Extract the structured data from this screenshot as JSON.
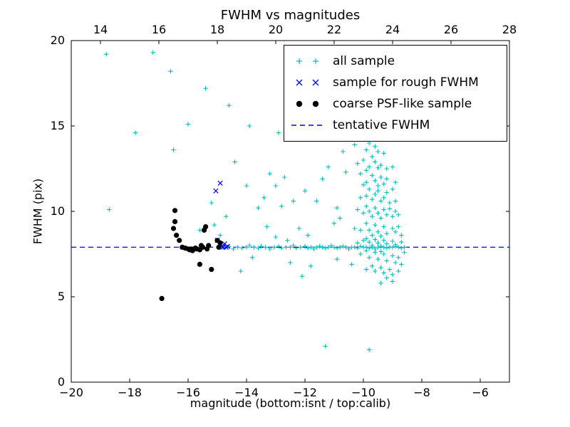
{
  "chart_data": {
    "type": "scatter",
    "title": "FWHM vs magnitudes",
    "xlabel": "magnitude (bottom:isnt / top:calib)",
    "ylabel": "FWHM (pix)",
    "xlim": [
      -20,
      -5
    ],
    "ylim": [
      0,
      20
    ],
    "top_xlim": [
      13,
      28
    ],
    "x_ticks": [
      -20,
      -18,
      -16,
      -14,
      -12,
      -10,
      -8,
      -6
    ],
    "top_x_ticks": [
      14,
      16,
      18,
      20,
      22,
      24,
      26,
      28
    ],
    "y_ticks": [
      0,
      5,
      10,
      15,
      20
    ],
    "grid": false,
    "legend_position": "upper right",
    "tentative_fwhm": 7.9,
    "colors": {
      "all_sample": "#00bfbf",
      "rough_fwhm_sample": "#0000ff",
      "psf_like_sample": "#000000",
      "tentative_fwhm_line": "#0000ff"
    },
    "series": [
      {
        "name": "all sample",
        "marker": "plus",
        "color": "#00bfbf",
        "points": [
          [
            -18.8,
            19.2
          ],
          [
            -17.2,
            19.3
          ],
          [
            -16.6,
            18.2
          ],
          [
            -15.4,
            17.2
          ],
          [
            -14.6,
            16.2
          ],
          [
            -12.3,
            16.6
          ],
          [
            -16.0,
            15.1
          ],
          [
            -13.9,
            15.0
          ],
          [
            -17.8,
            14.6
          ],
          [
            -12.9,
            14.6
          ],
          [
            -11.1,
            14.9
          ],
          [
            -11.6,
            14.3
          ],
          [
            -18.7,
            10.1
          ],
          [
            -16.5,
            13.6
          ],
          [
            -15.2,
            10.5
          ],
          [
            -14.7,
            9.7
          ],
          [
            -14.4,
            12.9
          ],
          [
            -14.0,
            11.5
          ],
          [
            -13.4,
            10.8
          ],
          [
            -15.1,
            9.2
          ],
          [
            -15.6,
            8.9
          ],
          [
            -14.9,
            8.6
          ],
          [
            -13.2,
            12.2
          ],
          [
            -12.7,
            12.0
          ],
          [
            -13.0,
            11.5
          ],
          [
            -11.2,
            12.6
          ],
          [
            -10.6,
            12.3
          ],
          [
            -10.7,
            13.5
          ],
          [
            -12.0,
            11.2
          ],
          [
            -11.4,
            11.9
          ],
          [
            -12.4,
            10.6
          ],
          [
            -10.9,
            10.2
          ],
          [
            -12.8,
            10.3
          ],
          [
            -13.6,
            10.2
          ],
          [
            -11.6,
            10.6
          ],
          [
            -11.0,
            9.3
          ],
          [
            -10.8,
            9.6
          ],
          [
            -12.2,
            9.0
          ],
          [
            -13.3,
            9.1
          ],
          [
            -11.9,
            8.6
          ],
          [
            -13.0,
            8.5
          ],
          [
            -12.6,
            8.3
          ],
          [
            -12.5,
            7.0
          ],
          [
            -11.8,
            6.8
          ],
          [
            -10.9,
            7.2
          ],
          [
            -13.8,
            7.3
          ],
          [
            -14.2,
            6.5
          ],
          [
            -12.1,
            6.2
          ],
          [
            -10.4,
            6.9
          ],
          [
            -11.3,
            2.1
          ],
          [
            -9.8,
            1.9
          ],
          [
            -14.8,
            7.9
          ],
          [
            -14.6,
            7.95
          ],
          [
            -14.45,
            7.8
          ],
          [
            -14.3,
            7.9
          ],
          [
            -14.15,
            7.85
          ],
          [
            -14.0,
            7.9
          ],
          [
            -13.9,
            8.0
          ],
          [
            -13.75,
            7.9
          ],
          [
            -13.6,
            7.85
          ],
          [
            -13.5,
            7.95
          ],
          [
            -13.35,
            7.9
          ],
          [
            -13.2,
            7.8
          ],
          [
            -13.05,
            7.9
          ],
          [
            -12.9,
            7.95
          ],
          [
            -12.8,
            7.85
          ],
          [
            -12.65,
            7.9
          ],
          [
            -12.5,
            7.9
          ],
          [
            -12.4,
            8.0
          ],
          [
            -12.3,
            7.85
          ],
          [
            -12.15,
            7.9
          ],
          [
            -12.0,
            7.95
          ],
          [
            -11.9,
            7.85
          ],
          [
            -11.8,
            7.9
          ],
          [
            -11.7,
            7.8
          ],
          [
            -11.6,
            7.9
          ],
          [
            -11.5,
            7.95
          ],
          [
            -11.4,
            7.9
          ],
          [
            -11.3,
            7.85
          ],
          [
            -11.2,
            7.9
          ],
          [
            -11.1,
            8.0
          ],
          [
            -11.0,
            7.9
          ],
          [
            -10.9,
            7.85
          ],
          [
            -10.8,
            7.9
          ],
          [
            -10.7,
            7.95
          ],
          [
            -10.6,
            7.9
          ],
          [
            -10.5,
            7.8
          ],
          [
            -10.4,
            7.9
          ],
          [
            -10.3,
            7.9
          ],
          [
            -10.2,
            7.85
          ],
          [
            -10.1,
            7.95
          ],
          [
            -10.0,
            7.9
          ],
          [
            -9.9,
            7.9
          ],
          [
            -9.8,
            7.85
          ],
          [
            -9.7,
            7.9
          ],
          [
            -9.6,
            7.8
          ],
          [
            -9.5,
            7.9
          ],
          [
            -9.4,
            7.95
          ],
          [
            -9.3,
            7.9
          ],
          [
            -9.2,
            7.85
          ],
          [
            -9.1,
            7.9
          ],
          [
            -9.0,
            7.9
          ],
          [
            -8.9,
            7.95
          ],
          [
            -8.8,
            7.9
          ],
          [
            -8.7,
            7.85
          ],
          [
            -8.6,
            7.9
          ],
          [
            -10.1,
            14.3
          ],
          [
            -9.8,
            14.0
          ],
          [
            -9.6,
            13.8
          ],
          [
            -9.9,
            13.6
          ],
          [
            -9.5,
            13.5
          ],
          [
            -10.3,
            13.9
          ],
          [
            -9.3,
            13.4
          ],
          [
            -9.7,
            13.2
          ],
          [
            -10.0,
            13.0
          ],
          [
            -9.6,
            12.9
          ],
          [
            -9.4,
            12.7
          ],
          [
            -9.8,
            12.6
          ],
          [
            -9.2,
            12.5
          ],
          [
            -10.2,
            12.8
          ],
          [
            -9.5,
            12.55
          ],
          [
            -9.9,
            12.4
          ],
          [
            -9.0,
            12.6
          ],
          [
            -10.1,
            12.2
          ],
          [
            -9.7,
            12.1
          ],
          [
            -9.4,
            12.0
          ],
          [
            -9.2,
            11.9
          ],
          [
            -9.6,
            11.8
          ],
          [
            -9.9,
            11.7
          ],
          [
            -9.3,
            11.6
          ],
          [
            -9.5,
            11.5
          ],
          [
            -10.0,
            11.55
          ],
          [
            -8.9,
            11.7
          ],
          [
            -9.8,
            11.3
          ],
          [
            -9.5,
            11.2
          ],
          [
            -9.2,
            11.1
          ],
          [
            -9.6,
            11.0
          ],
          [
            -9.9,
            10.9
          ],
          [
            -9.3,
            10.8
          ],
          [
            -9.7,
            10.7
          ],
          [
            -9.4,
            10.6
          ],
          [
            -9.1,
            10.5
          ],
          [
            -10.1,
            10.8
          ],
          [
            -8.9,
            10.6
          ],
          [
            -9.0,
            11.3
          ],
          [
            -9.9,
            10.3
          ],
          [
            -9.6,
            10.2
          ],
          [
            -9.3,
            10.1
          ],
          [
            -9.8,
            10.0
          ],
          [
            -9.5,
            9.9
          ],
          [
            -9.2,
            9.8
          ],
          [
            -9.7,
            9.7
          ],
          [
            -9.4,
            9.6
          ],
          [
            -9.0,
            9.7
          ],
          [
            -10.0,
            9.9
          ],
          [
            -8.9,
            10.0
          ],
          [
            -9.1,
            10.15
          ],
          [
            -10.2,
            10.1
          ],
          [
            -8.8,
            9.8
          ],
          [
            -9.9,
            9.3
          ],
          [
            -9.6,
            9.2
          ],
          [
            -9.3,
            9.1
          ],
          [
            -9.0,
            9.0
          ],
          [
            -9.8,
            8.9
          ],
          [
            -9.5,
            8.8
          ],
          [
            -9.2,
            8.7
          ],
          [
            -9.7,
            8.6
          ],
          [
            -9.4,
            8.55
          ],
          [
            -8.9,
            8.8
          ],
          [
            -10.1,
            8.9
          ],
          [
            -8.8,
            9.1
          ],
          [
            -10.3,
            9.0
          ],
          [
            -8.7,
            8.6
          ],
          [
            -9.9,
            8.4
          ],
          [
            -9.6,
            8.35
          ],
          [
            -9.3,
            8.3
          ],
          [
            -9.0,
            8.25
          ],
          [
            -9.8,
            8.2
          ],
          [
            -9.5,
            8.15
          ],
          [
            -9.2,
            8.1
          ],
          [
            -8.9,
            8.05
          ],
          [
            -9.7,
            8.0
          ],
          [
            -10.0,
            8.3
          ],
          [
            -8.7,
            8.2
          ],
          [
            -10.2,
            8.15
          ],
          [
            -9.9,
            7.7
          ],
          [
            -9.6,
            7.6
          ],
          [
            -9.3,
            7.5
          ],
          [
            -9.0,
            7.4
          ],
          [
            -9.8,
            7.3
          ],
          [
            -9.5,
            7.2
          ],
          [
            -9.2,
            7.1
          ],
          [
            -8.9,
            7.0
          ],
          [
            -9.4,
            7.65
          ],
          [
            -8.8,
            7.3
          ],
          [
            -10.1,
            7.5
          ],
          [
            -8.6,
            7.6
          ],
          [
            -9.7,
            6.8
          ],
          [
            -9.4,
            6.7
          ],
          [
            -9.1,
            6.6
          ],
          [
            -9.6,
            6.5
          ],
          [
            -9.3,
            6.4
          ],
          [
            -9.0,
            6.3
          ],
          [
            -8.8,
            6.5
          ],
          [
            -9.9,
            6.6
          ],
          [
            -8.7,
            6.9
          ],
          [
            -9.2,
            6.1
          ],
          [
            -9.4,
            5.8
          ],
          [
            -9.0,
            5.9
          ]
        ]
      },
      {
        "name": "sample for rough FWHM",
        "marker": "x",
        "color": "#0000ff",
        "points": [
          [
            -15.05,
            11.2
          ],
          [
            -14.9,
            11.65
          ],
          [
            -15.0,
            8.3
          ],
          [
            -14.9,
            8.05
          ],
          [
            -14.85,
            7.95
          ],
          [
            -14.8,
            7.9
          ],
          [
            -14.75,
            8.1
          ],
          [
            -14.7,
            7.9
          ],
          [
            -14.65,
            7.95
          ]
        ]
      },
      {
        "name": "coarse PSF-like sample",
        "marker": "circle",
        "color": "#000000",
        "points": [
          [
            -16.9,
            4.9
          ],
          [
            -16.5,
            9.0
          ],
          [
            -16.45,
            9.4
          ],
          [
            -16.4,
            8.6
          ],
          [
            -16.3,
            8.3
          ],
          [
            -16.2,
            7.9
          ],
          [
            -16.45,
            10.05
          ],
          [
            -16.1,
            7.85
          ],
          [
            -16.0,
            7.8
          ],
          [
            -15.95,
            7.75
          ],
          [
            -15.9,
            7.8
          ],
          [
            -15.85,
            7.7
          ],
          [
            -15.8,
            7.8
          ],
          [
            -15.75,
            7.85
          ],
          [
            -15.7,
            7.8
          ],
          [
            -15.6,
            7.75
          ],
          [
            -15.55,
            8.0
          ],
          [
            -15.5,
            7.9
          ],
          [
            -15.45,
            8.9
          ],
          [
            -15.4,
            9.1
          ],
          [
            -15.35,
            7.8
          ],
          [
            -15.3,
            8.0
          ],
          [
            -15.2,
            6.6
          ],
          [
            -15.6,
            6.9
          ],
          [
            -15.0,
            8.3
          ],
          [
            -14.95,
            7.9
          ],
          [
            -14.9,
            8.15
          ]
        ]
      },
      {
        "name": "tentative FWHM",
        "marker": "dashed-line",
        "color": "#0000ff",
        "y": 7.9
      }
    ]
  }
}
